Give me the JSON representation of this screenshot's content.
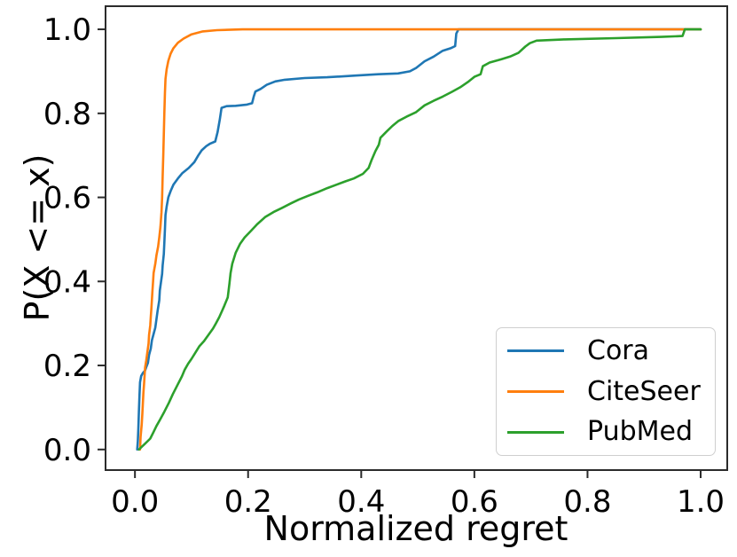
{
  "figure": {
    "background": "#ffffff",
    "text_color": "#000000",
    "spine_color": "#2b2b2b"
  },
  "chart_data": {
    "type": "line",
    "subtype": "ecdf",
    "title": "",
    "xlabel": "Normalized regret",
    "ylabel": "P(X <= x)",
    "xlim": [
      -0.052,
      1.047
    ],
    "ylim": [
      -0.049,
      1.055
    ],
    "grid": false,
    "legend": {
      "position": "lower right",
      "entries": [
        "Cora",
        "CiteSeer",
        "PubMed"
      ]
    },
    "xticks": {
      "values": [
        0.0,
        0.2,
        0.4,
        0.6,
        0.8,
        1.0
      ],
      "labels": [
        "0.0",
        "0.2",
        "0.4",
        "0.6",
        "0.8",
        "1.0"
      ]
    },
    "yticks": {
      "values": [
        0.0,
        0.2,
        0.4,
        0.6,
        0.8,
        1.0
      ],
      "labels": [
        "0.0",
        "0.2",
        "0.4",
        "0.6",
        "0.8",
        "1.0"
      ]
    },
    "series": [
      {
        "name": "Cora",
        "color": "#1f77b4",
        "points": [
          [
            0.004,
            0.0
          ],
          [
            0.005,
            0.02
          ],
          [
            0.006,
            0.05
          ],
          [
            0.007,
            0.09
          ],
          [
            0.008,
            0.13
          ],
          [
            0.009,
            0.16
          ],
          [
            0.011,
            0.175
          ],
          [
            0.014,
            0.182
          ],
          [
            0.018,
            0.188
          ],
          [
            0.02,
            0.196
          ],
          [
            0.023,
            0.206
          ],
          [
            0.025,
            0.225
          ],
          [
            0.028,
            0.24
          ],
          [
            0.03,
            0.26
          ],
          [
            0.033,
            0.275
          ],
          [
            0.036,
            0.29
          ],
          [
            0.038,
            0.31
          ],
          [
            0.04,
            0.33
          ],
          [
            0.043,
            0.355
          ],
          [
            0.044,
            0.378
          ],
          [
            0.046,
            0.398
          ],
          [
            0.048,
            0.418
          ],
          [
            0.049,
            0.438
          ],
          [
            0.051,
            0.465
          ],
          [
            0.052,
            0.492
          ],
          [
            0.053,
            0.525
          ],
          [
            0.054,
            0.558
          ],
          [
            0.056,
            0.578
          ],
          [
            0.059,
            0.6
          ],
          [
            0.063,
            0.615
          ],
          [
            0.068,
            0.63
          ],
          [
            0.076,
            0.645
          ],
          [
            0.084,
            0.658
          ],
          [
            0.095,
            0.67
          ],
          [
            0.105,
            0.684
          ],
          [
            0.112,
            0.7
          ],
          [
            0.118,
            0.712
          ],
          [
            0.126,
            0.722
          ],
          [
            0.133,
            0.728
          ],
          [
            0.142,
            0.733
          ],
          [
            0.146,
            0.755
          ],
          [
            0.15,
            0.785
          ],
          [
            0.153,
            0.813
          ],
          [
            0.162,
            0.817
          ],
          [
            0.178,
            0.818
          ],
          [
            0.198,
            0.821
          ],
          [
            0.207,
            0.824
          ],
          [
            0.21,
            0.84
          ],
          [
            0.213,
            0.852
          ],
          [
            0.222,
            0.858
          ],
          [
            0.233,
            0.868
          ],
          [
            0.248,
            0.876
          ],
          [
            0.265,
            0.88
          ],
          [
            0.3,
            0.884
          ],
          [
            0.34,
            0.886
          ],
          [
            0.39,
            0.89
          ],
          [
            0.43,
            0.893
          ],
          [
            0.465,
            0.895
          ],
          [
            0.486,
            0.9
          ],
          [
            0.497,
            0.908
          ],
          [
            0.512,
            0.924
          ],
          [
            0.528,
            0.935
          ],
          [
            0.544,
            0.949
          ],
          [
            0.558,
            0.955
          ],
          [
            0.566,
            0.96
          ],
          [
            0.568,
            0.99
          ],
          [
            0.572,
            1.0
          ],
          [
            1.0,
            1.0
          ]
        ]
      },
      {
        "name": "CiteSeer",
        "color": "#ff7f0e",
        "points": [
          [
            0.009,
            0.0
          ],
          [
            0.01,
            0.03
          ],
          [
            0.012,
            0.06
          ],
          [
            0.013,
            0.085
          ],
          [
            0.014,
            0.11
          ],
          [
            0.015,
            0.135
          ],
          [
            0.016,
            0.155
          ],
          [
            0.017,
            0.175
          ],
          [
            0.018,
            0.195
          ],
          [
            0.02,
            0.212
          ],
          [
            0.022,
            0.232
          ],
          [
            0.024,
            0.252
          ],
          [
            0.025,
            0.273
          ],
          [
            0.027,
            0.295
          ],
          [
            0.028,
            0.315
          ],
          [
            0.029,
            0.336
          ],
          [
            0.03,
            0.357
          ],
          [
            0.031,
            0.378
          ],
          [
            0.032,
            0.4
          ],
          [
            0.033,
            0.42
          ],
          [
            0.036,
            0.442
          ],
          [
            0.038,
            0.462
          ],
          [
            0.041,
            0.483
          ],
          [
            0.043,
            0.505
          ],
          [
            0.045,
            0.53
          ],
          [
            0.047,
            0.565
          ],
          [
            0.048,
            0.6
          ],
          [
            0.049,
            0.65
          ],
          [
            0.05,
            0.7
          ],
          [
            0.051,
            0.75
          ],
          [
            0.052,
            0.8
          ],
          [
            0.053,
            0.85
          ],
          [
            0.054,
            0.882
          ],
          [
            0.056,
            0.905
          ],
          [
            0.059,
            0.925
          ],
          [
            0.063,
            0.942
          ],
          [
            0.068,
            0.955
          ],
          [
            0.076,
            0.968
          ],
          [
            0.086,
            0.978
          ],
          [
            0.1,
            0.988
          ],
          [
            0.12,
            0.995
          ],
          [
            0.145,
            0.998
          ],
          [
            0.19,
            1.0
          ],
          [
            1.0,
            1.0
          ]
        ]
      },
      {
        "name": "PubMed",
        "color": "#2ca02c",
        "points": [
          [
            0.007,
            0.0
          ],
          [
            0.018,
            0.014
          ],
          [
            0.027,
            0.026
          ],
          [
            0.033,
            0.042
          ],
          [
            0.038,
            0.056
          ],
          [
            0.044,
            0.07
          ],
          [
            0.052,
            0.09
          ],
          [
            0.06,
            0.111
          ],
          [
            0.067,
            0.132
          ],
          [
            0.075,
            0.153
          ],
          [
            0.083,
            0.174
          ],
          [
            0.088,
            0.19
          ],
          [
            0.094,
            0.204
          ],
          [
            0.1,
            0.216
          ],
          [
            0.107,
            0.231
          ],
          [
            0.114,
            0.246
          ],
          [
            0.122,
            0.258
          ],
          [
            0.13,
            0.273
          ],
          [
            0.138,
            0.288
          ],
          [
            0.143,
            0.3
          ],
          [
            0.149,
            0.315
          ],
          [
            0.154,
            0.33
          ],
          [
            0.158,
            0.342
          ],
          [
            0.164,
            0.362
          ],
          [
            0.167,
            0.395
          ],
          [
            0.169,
            0.42
          ],
          [
            0.172,
            0.442
          ],
          [
            0.178,
            0.468
          ],
          [
            0.186,
            0.49
          ],
          [
            0.194,
            0.505
          ],
          [
            0.205,
            0.52
          ],
          [
            0.216,
            0.536
          ],
          [
            0.23,
            0.553
          ],
          [
            0.245,
            0.565
          ],
          [
            0.26,
            0.575
          ],
          [
            0.276,
            0.586
          ],
          [
            0.29,
            0.595
          ],
          [
            0.305,
            0.603
          ],
          [
            0.322,
            0.612
          ],
          [
            0.34,
            0.622
          ],
          [
            0.356,
            0.63
          ],
          [
            0.372,
            0.638
          ],
          [
            0.387,
            0.645
          ],
          [
            0.403,
            0.656
          ],
          [
            0.413,
            0.67
          ],
          [
            0.418,
            0.688
          ],
          [
            0.425,
            0.71
          ],
          [
            0.431,
            0.725
          ],
          [
            0.434,
            0.742
          ],
          [
            0.445,
            0.757
          ],
          [
            0.455,
            0.77
          ],
          [
            0.466,
            0.782
          ],
          [
            0.48,
            0.792
          ],
          [
            0.497,
            0.803
          ],
          [
            0.512,
            0.819
          ],
          [
            0.528,
            0.83
          ],
          [
            0.544,
            0.84
          ],
          [
            0.56,
            0.851
          ],
          [
            0.575,
            0.862
          ],
          [
            0.59,
            0.876
          ],
          [
            0.6,
            0.887
          ],
          [
            0.611,
            0.893
          ],
          [
            0.615,
            0.912
          ],
          [
            0.627,
            0.921
          ],
          [
            0.648,
            0.929
          ],
          [
            0.663,
            0.935
          ],
          [
            0.678,
            0.944
          ],
          [
            0.69,
            0.959
          ],
          [
            0.698,
            0.967
          ],
          [
            0.71,
            0.973
          ],
          [
            0.76,
            0.976
          ],
          [
            0.85,
            0.979
          ],
          [
            0.93,
            0.982
          ],
          [
            0.968,
            0.984
          ],
          [
            0.972,
            1.0
          ],
          [
            1.0,
            1.0
          ]
        ]
      }
    ]
  }
}
